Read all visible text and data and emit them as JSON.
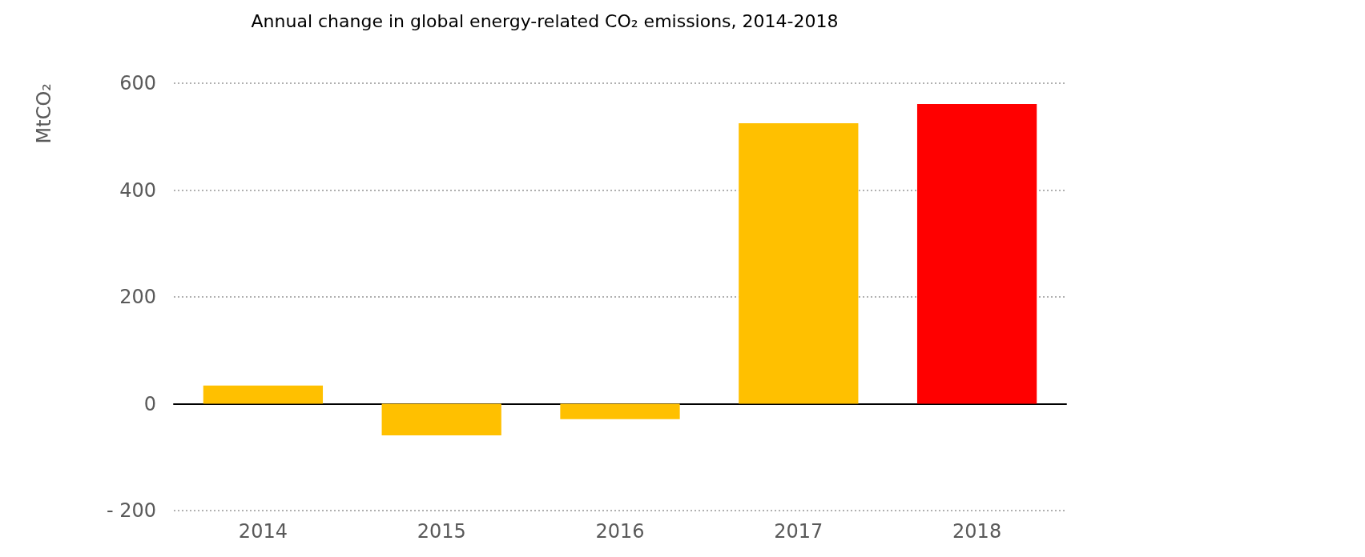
{
  "chart_data": {
    "type": "bar",
    "title": "Annual change in global energy-related CO₂ emissions, 2014-2018",
    "ylabel": "MtCO₂",
    "categories": [
      "2014",
      "2015",
      "2016",
      "2017",
      "2018"
    ],
    "values": [
      34,
      -59,
      -29,
      525,
      561
    ],
    "colors": [
      "#ffc000",
      "#ffc000",
      "#ffc000",
      "#ffc000",
      "#ff0000"
    ],
    "ylim": [
      -200,
      600
    ],
    "yticks": [
      {
        "value": -200,
        "label": "- 200"
      },
      0,
      200,
      400,
      600
    ],
    "grid": "y"
  }
}
